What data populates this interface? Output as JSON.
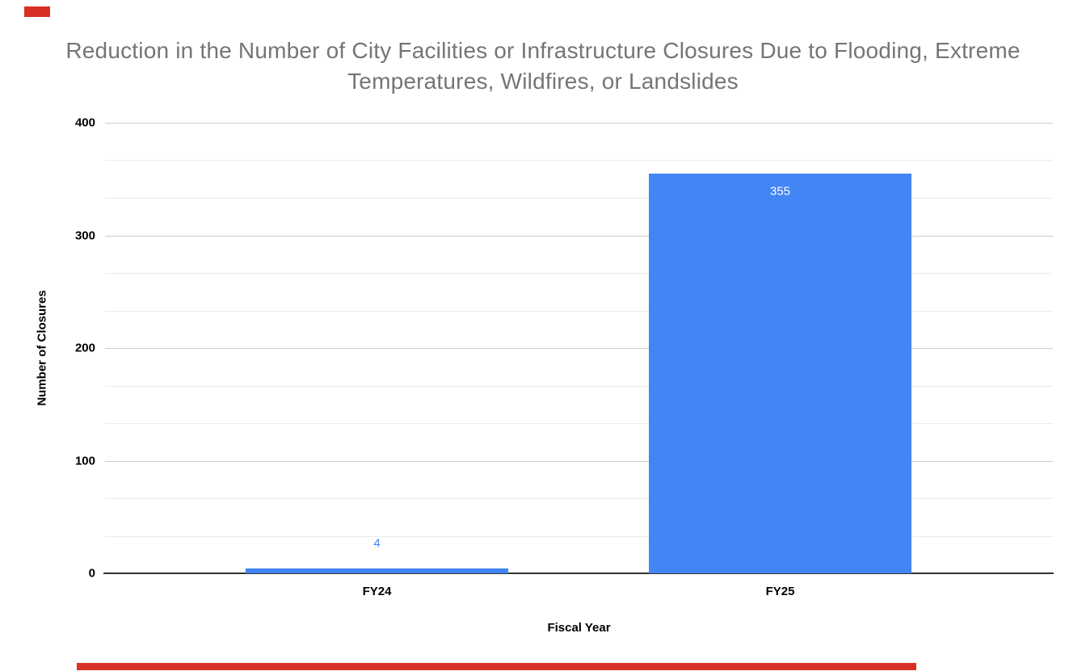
{
  "chart_data": {
    "type": "bar",
    "title": "Reduction in the Number of City Facilities or Infrastructure Closures Due to Flooding, Extreme Temperatures, Wildfires, or Landslides",
    "categories": [
      "FY24",
      "FY25"
    ],
    "values": [
      4,
      355
    ],
    "value_labels": [
      "4",
      "355"
    ],
    "value_label_placement": [
      "above",
      "inside"
    ],
    "xlabel": "Fiscal Year",
    "ylabel": "Number of Closures",
    "ylim": [
      0,
      400
    ],
    "yticks": [
      0,
      100,
      200,
      300,
      400
    ],
    "minor_gridlines_per_interval": 2,
    "grid": true,
    "legend_position": "none"
  },
  "colors": {
    "background": "#ffffff",
    "bar": "#4285f4",
    "title_text": "#757575",
    "axis_text": "#000000",
    "gridline_major": "#cccccc",
    "gridline_minor": "#ebebeb",
    "axis_baseline": "#333333",
    "value_label_above": "#4285f4",
    "value_label_inside": "#ffffff",
    "red_marker": "#d93025"
  }
}
